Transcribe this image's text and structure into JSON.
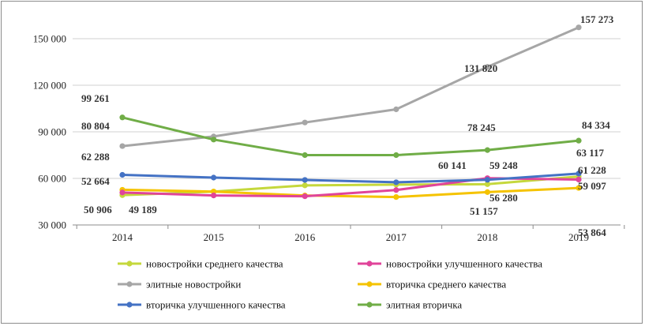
{
  "chart_data": {
    "type": "line",
    "categories": [
      "2014",
      "2015",
      "2016",
      "2017",
      "2018",
      "2019"
    ],
    "ylim": [
      30000,
      150000
    ],
    "yticks": [
      30000,
      60000,
      90000,
      120000,
      150000
    ],
    "ytick_labels": [
      "30 000",
      "60 000",
      "90 000",
      "120 000",
      "150 000"
    ],
    "grid": "horizontal",
    "legend_position": "bottom",
    "series": [
      {
        "name": "новостройки среднего качества",
        "color": "#c5d83c",
        "values": [
          49189,
          51500,
          55500,
          56000,
          56280,
          61228
        ]
      },
      {
        "name": "новостройки улучшенного качества",
        "color": "#e0449a",
        "values": [
          50906,
          49000,
          48500,
          52500,
          60141,
          59248
        ]
      },
      {
        "name": "элитные новостройки",
        "color": "#a6a6a6",
        "values": [
          80804,
          87000,
          96000,
          104500,
          131820,
          157273
        ]
      },
      {
        "name": "вторичка среднего качества",
        "color": "#f5c300",
        "values": [
          52664,
          51500,
          49000,
          48000,
          51157,
          53864
        ]
      },
      {
        "name": "вторичка улучшенного качества",
        "color": "#4472c4",
        "values": [
          62288,
          60500,
          59000,
          57500,
          59097,
          63117
        ]
      },
      {
        "name": "элитная вторичка",
        "color": "#70ad47",
        "values": [
          99261,
          85000,
          75000,
          75000,
          78245,
          84334
        ]
      }
    ],
    "data_labels": [
      {
        "text": "99 261"
      },
      {
        "text": "80 804"
      },
      {
        "text": "62 288"
      },
      {
        "text": "52 664"
      },
      {
        "text": "50 906"
      },
      {
        "text": "49 189"
      },
      {
        "text": "131 820"
      },
      {
        "text": "78 245"
      },
      {
        "text": "60 141"
      },
      {
        "text": "59 248"
      },
      {
        "text": "51 157"
      },
      {
        "text": "56 280"
      },
      {
        "text": "157 273"
      },
      {
        "text": "84 334"
      },
      {
        "text": "63 117"
      },
      {
        "text": "61 228"
      },
      {
        "text": "59 097"
      },
      {
        "text": "53 864"
      }
    ]
  }
}
